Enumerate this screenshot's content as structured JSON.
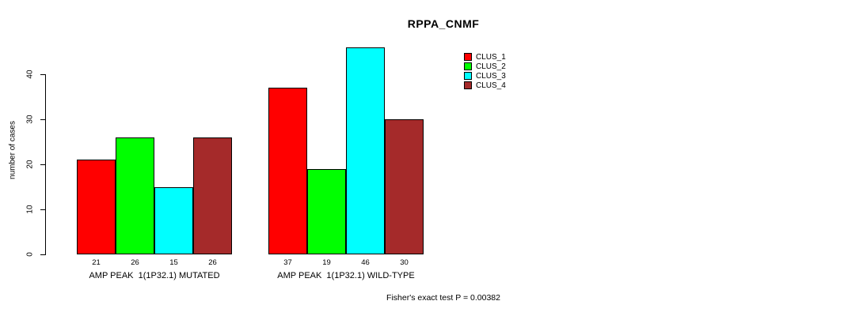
{
  "title": "RPPA_CNMF",
  "footnote": "Fisher's exact test P = 0.00382",
  "chart_data": {
    "type": "bar",
    "title": "RPPA_CNMF",
    "xlabel": "",
    "ylabel": "number of cases",
    "yticks": [
      0,
      10,
      20,
      30,
      40
    ],
    "ylim": [
      0,
      46
    ],
    "grid": false,
    "legend_position": "top-right",
    "groups": [
      "AMP PEAK  1(1P32.1) MUTATED",
      "AMP PEAK  1(1P32.1) WILD-TYPE"
    ],
    "series": [
      {
        "name": "CLUS_1",
        "color": "#FF0000",
        "values": [
          21,
          37
        ]
      },
      {
        "name": "CLUS_2",
        "color": "#00FF00",
        "values": [
          26,
          19
        ]
      },
      {
        "name": "CLUS_3",
        "color": "#00FFFF",
        "values": [
          15,
          46
        ]
      },
      {
        "name": "CLUS_4",
        "color": "#A52A2A",
        "values": [
          26,
          30
        ]
      }
    ],
    "bar_value_labels": [
      [
        21,
        26,
        15,
        26
      ],
      [
        37,
        19,
        46,
        30
      ]
    ],
    "annotation": "Fisher's exact test P = 0.00382"
  }
}
